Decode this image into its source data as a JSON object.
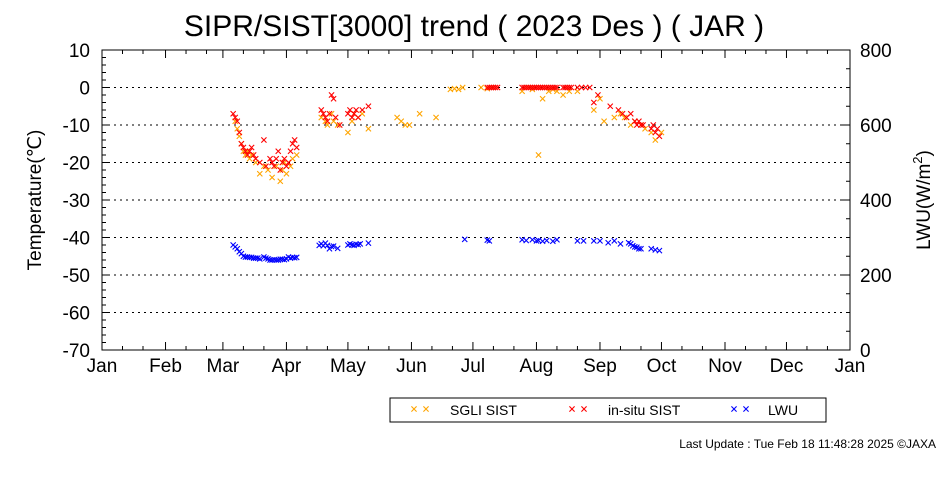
{
  "chart_data": {
    "type": "scatter",
    "title": "SIPR/SIST[3000] trend ( 2023 Des ) ( JAR )",
    "ylabel": "Temperature(℃)",
    "y2label": "LWU(W/m",
    "y2label_sup": "2",
    "y2label_close": ")",
    "ylim": [
      -70,
      10
    ],
    "y2lim": [
      0,
      800
    ],
    "yticks": [
      "10",
      "0",
      "-10",
      "-20",
      "-30",
      "-40",
      "-50",
      "-60",
      "-70"
    ],
    "y2ticks": [
      "800",
      "600",
      "400",
      "200",
      "0"
    ],
    "x_month_labels": [
      "Jan",
      "Feb",
      "Mar",
      "Apr",
      "May",
      "Jun",
      "Jul",
      "Aug",
      "Sep",
      "Oct",
      "Nov",
      "Dec",
      "Jan"
    ],
    "xlim_days": [
      0,
      365
    ],
    "grid": "horizontal dotted",
    "legend_position": "bottom",
    "colors": {
      "sgli": "#ffa500",
      "insitu": "#ff0000",
      "lwu": "#0000ff"
    },
    "series": [
      {
        "name": "SGLI SIST",
        "axis": "left",
        "x": [
          65,
          66,
          67,
          68,
          69,
          70,
          71,
          72,
          73,
          75,
          77,
          79,
          81,
          83,
          85,
          87,
          88,
          89,
          90,
          92,
          93,
          95,
          107,
          109,
          110,
          112,
          113,
          115,
          120,
          122,
          123,
          125,
          127,
          130,
          144,
          146,
          148,
          150,
          155,
          163,
          170,
          172,
          174,
          176,
          185,
          188,
          190,
          205,
          208,
          210,
          213,
          215,
          218,
          220,
          222,
          225,
          228,
          232,
          240,
          243,
          245,
          250,
          253,
          255,
          258,
          260,
          263,
          265,
          268,
          270,
          273
        ],
        "y": [
          -9,
          -11,
          -13,
          -15,
          -17,
          -18,
          -17,
          -19,
          -18,
          -20,
          -23,
          -21,
          -22,
          -24,
          -21,
          -25,
          -22,
          -20,
          -23,
          -21,
          -19,
          -18,
          -8,
          -9,
          -10,
          -7,
          -9,
          -10,
          -12,
          -9,
          -7,
          -8,
          -7,
          -11,
          -8,
          -9,
          -10,
          -10,
          -7,
          -8,
          -0.5,
          -0.3,
          -0.5,
          0,
          0,
          -0.3,
          0,
          -1,
          0,
          -0.5,
          -18,
          -3,
          -1,
          -0.5,
          -1,
          -2,
          -1,
          -1,
          -6,
          -3,
          -9,
          -8,
          -7,
          -8,
          -10,
          -9,
          -10,
          -11,
          -12,
          -14,
          -12
        ]
      },
      {
        "name": "in-situ SIST",
        "axis": "left",
        "x": [
          64,
          65,
          66,
          67,
          68,
          69,
          70,
          71,
          72,
          73,
          74,
          75,
          77,
          79,
          80,
          82,
          83,
          84,
          85,
          86,
          87,
          88,
          89,
          90,
          91,
          92,
          93,
          94,
          95,
          107,
          108,
          109,
          110,
          111,
          112,
          113,
          114,
          116,
          120,
          121,
          122,
          123,
          124,
          125,
          127,
          130,
          188,
          189,
          190,
          191,
          192,
          193,
          205,
          206,
          207,
          208,
          209,
          210,
          211,
          212,
          213,
          214,
          215,
          216,
          217,
          218,
          219,
          220,
          221,
          222,
          225,
          226,
          227,
          228,
          229,
          232,
          234,
          236,
          238,
          240,
          242,
          248,
          252,
          254,
          256,
          258,
          260,
          261,
          262,
          263,
          264,
          268,
          269,
          270,
          271,
          272
        ],
        "y": [
          -7,
          -8,
          -9,
          -12,
          -15,
          -16,
          -17,
          -18,
          -17,
          -16,
          -18,
          -19,
          -20,
          -14,
          -21,
          -19,
          -20,
          -21,
          -19,
          -17,
          -22,
          -20,
          -19,
          -21,
          -20,
          -17,
          -15,
          -14,
          -16,
          -6,
          -7,
          -8,
          -9,
          -7,
          -2,
          -3,
          -8,
          -10,
          -7,
          -6,
          -8,
          -7,
          -6,
          -8,
          -6,
          -5,
          0,
          0,
          0,
          0,
          0,
          0,
          0,
          0,
          0,
          0,
          0,
          0,
          0,
          0,
          0,
          0,
          0,
          0,
          0,
          0,
          0,
          0,
          0,
          0,
          0,
          0,
          0,
          0,
          0,
          0,
          0,
          0,
          0,
          -4,
          -2,
          -5,
          -6,
          -7,
          -8,
          -7,
          -9,
          -10,
          -9,
          -10,
          -10,
          -11,
          -10,
          -12,
          -11,
          -13
        ]
      },
      {
        "name": "LWU",
        "axis": "right",
        "x": [
          64,
          65,
          66,
          67,
          68,
          69,
          70,
          71,
          72,
          73,
          74,
          75,
          76,
          77,
          79,
          80,
          81,
          82,
          83,
          84,
          85,
          86,
          87,
          88,
          89,
          90,
          91,
          92,
          93,
          94,
          95,
          106,
          107,
          108,
          109,
          110,
          111,
          112,
          113,
          115,
          120,
          121,
          122,
          123,
          124,
          125,
          126,
          130,
          177,
          188,
          189,
          205,
          207,
          210,
          212,
          213,
          215,
          217,
          220,
          222,
          232,
          235,
          240,
          243,
          247,
          250,
          253,
          257,
          258,
          259,
          260,
          261,
          262,
          263,
          268,
          270,
          272
        ],
        "y": [
          280,
          275,
          270,
          262,
          257,
          250,
          248,
          248,
          247,
          247,
          245,
          245,
          245,
          243,
          248,
          245,
          243,
          240,
          240,
          241,
          240,
          240,
          242,
          242,
          241,
          243,
          248,
          245,
          247,
          246,
          247,
          279,
          283,
          278,
          285,
          279,
          270,
          276,
          277,
          271,
          280,
          283,
          280,
          279,
          282,
          281,
          283,
          285,
          295,
          293,
          291,
          294,
          292,
          294,
          291,
          292,
          290,
          292,
          290,
          294,
          291,
          291,
          291,
          291,
          286,
          291,
          283,
          286,
          283,
          278,
          275,
          274,
          270,
          270,
          270,
          267,
          265
        ]
      }
    ]
  },
  "legend": {
    "sgli_label": "SGLI SIST",
    "insitu_label": "in-situ SIST",
    "lwu_label": "LWU"
  },
  "footer": {
    "text": "Last Update : Tue Feb 18 11:48:28 2025  ©JAXA"
  }
}
